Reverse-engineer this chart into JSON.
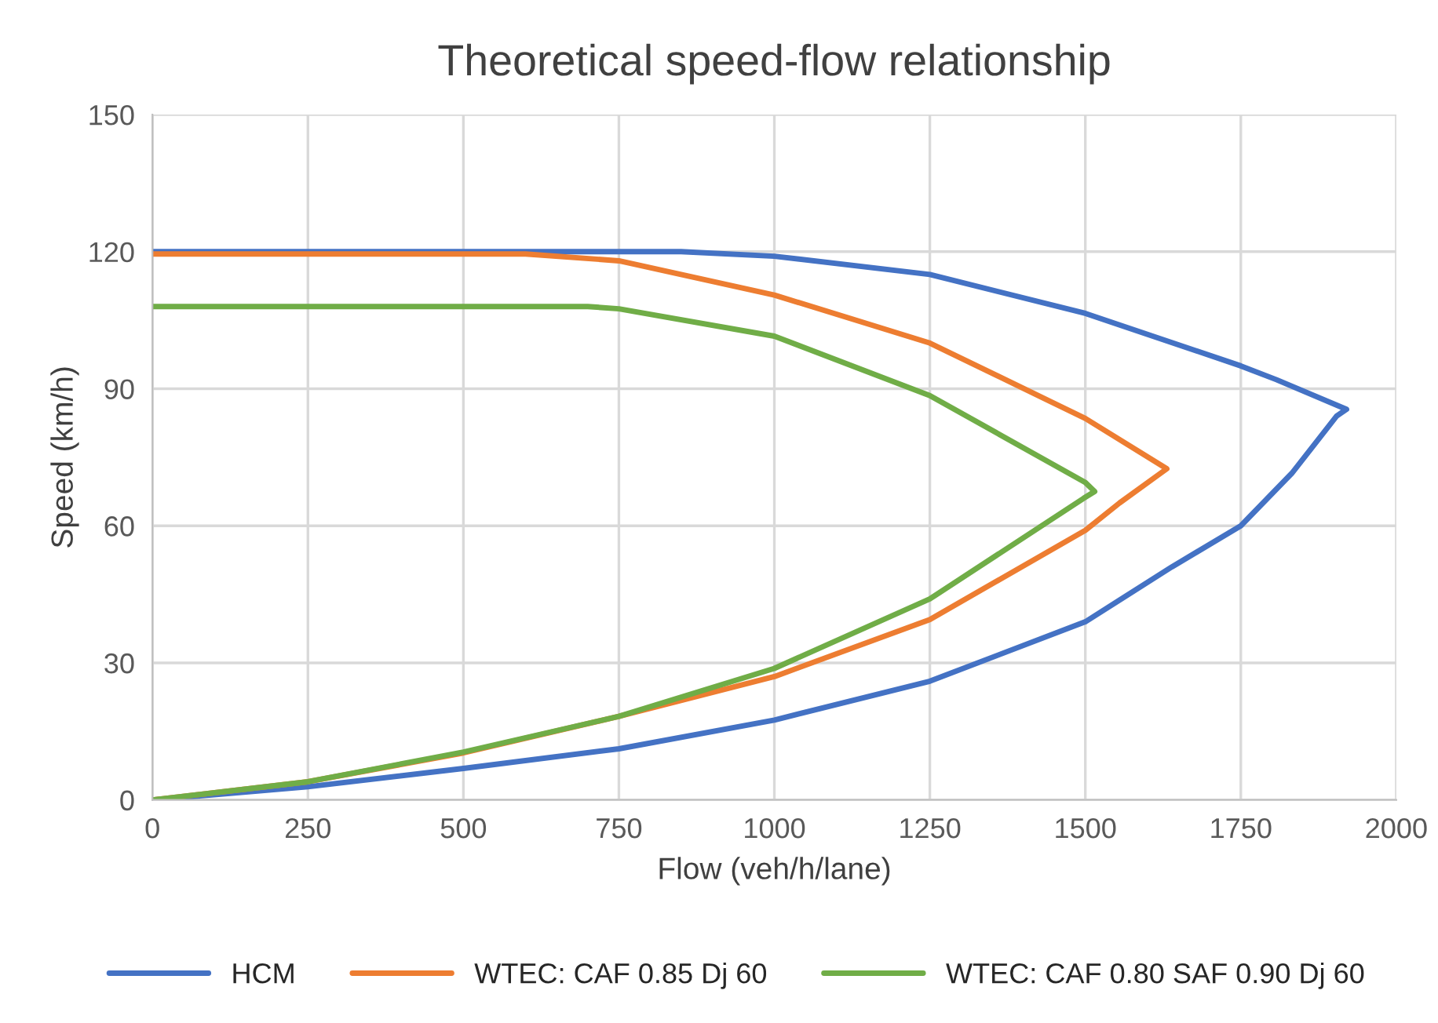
{
  "chart_data": {
    "type": "line",
    "title": "Theoretical speed-flow relationship",
    "xlabel": "Flow (veh/h/lane)",
    "ylabel": "Speed (km/h)",
    "series": [
      {
        "name": "HCM",
        "color": "#4472c4",
        "x": [
          0,
          250,
          500,
          750,
          1000,
          1250,
          1500,
          1639,
          1750,
          1832,
          1904,
          1920,
          1807,
          1750,
          1500,
          1250,
          1000,
          850,
          600,
          300,
          0
        ],
        "values": [
          0,
          2.9,
          6.9,
          11.2,
          17.5,
          26,
          39,
          51,
          60,
          71.5,
          84,
          85.5,
          92,
          95,
          106.5,
          115,
          119,
          120,
          120,
          120,
          120
        ]
      },
      {
        "name": "WTEC: CAF 0.85 Dj 60",
        "color": "#ed7d31",
        "x": [
          0,
          250,
          500,
          750,
          1000,
          1250,
          1500,
          1555,
          1631,
          1500,
          1250,
          1000,
          750,
          600,
          300,
          0
        ],
        "values": [
          0,
          4,
          10.3,
          18.3,
          27,
          39.5,
          59,
          65,
          72.5,
          83.5,
          100,
          110.5,
          118,
          119.5,
          119.5,
          119.5
        ]
      },
      {
        "name": "WTEC: CAF 0.80 SAF 0.90 Dj 60",
        "color": "#70ad47",
        "x": [
          0,
          250,
          500,
          750,
          1000,
          1250,
          1497,
          1515,
          1500,
          1250,
          1000,
          750,
          700,
          300,
          0
        ],
        "values": [
          0,
          4,
          10.5,
          18.3,
          28.8,
          44,
          66,
          67.5,
          69.5,
          88.5,
          101.5,
          107.5,
          108,
          108,
          108
        ]
      }
    ],
    "xlim": [
      0,
      2000
    ],
    "xticks": [
      0,
      250,
      500,
      750,
      1000,
      1250,
      1500,
      1750,
      2000
    ],
    "ylim": [
      0,
      150
    ],
    "yticks": [
      0,
      30,
      60,
      90,
      120,
      150
    ],
    "grid": true,
    "legend": "bottom",
    "marker": "none",
    "line_style": "solid"
  }
}
